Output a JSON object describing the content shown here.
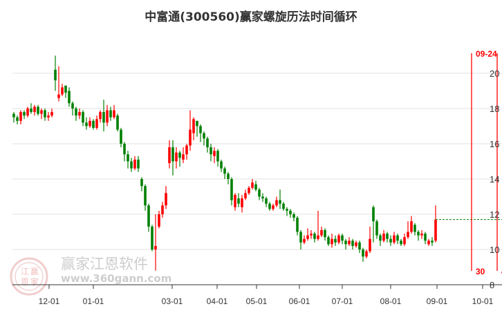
{
  "chart_data": {
    "type": "candlestick",
    "title": "中富通(300560)赢家螺旋历法时间循环",
    "ylim": [
      8,
      21
    ],
    "y_ticks": [
      "8",
      "10",
      "12",
      "14",
      "16",
      "18",
      "20"
    ],
    "x_ticks": [
      "12-01",
      "01-01",
      "03-01",
      "04-01",
      "05-01",
      "06-01",
      "07-01",
      "08-01",
      "09-01",
      "10-01"
    ],
    "grid": true,
    "colors": {
      "up": "#ff0000",
      "down": "#008000",
      "cycle_line": "#ff0000",
      "last_price_line": "#008000"
    },
    "candles": [
      [
        17.7,
        17.5,
        17.8,
        17.2
      ],
      [
        17.5,
        17.3,
        17.6,
        17.1
      ],
      [
        17.3,
        17.8,
        17.9,
        17.1
      ],
      [
        17.8,
        17.6,
        17.9,
        17.4
      ],
      [
        17.6,
        18.0,
        18.1,
        17.5
      ],
      [
        18.0,
        17.8,
        18.3,
        17.7
      ],
      [
        17.8,
        18.1,
        18.2,
        17.6
      ],
      [
        18.1,
        17.7,
        18.2,
        17.6
      ],
      [
        17.7,
        17.9,
        18.0,
        17.4
      ],
      [
        17.9,
        17.5,
        18.0,
        17.3
      ],
      [
        17.5,
        17.6,
        17.8,
        17.3
      ],
      [
        17.6,
        17.8,
        18.0,
        17.5
      ],
      [
        20.2,
        19.6,
        21.0,
        19.0
      ],
      [
        18.6,
        18.8,
        20.4,
        18.4
      ],
      [
        18.8,
        19.2,
        19.4,
        18.7
      ],
      [
        19.3,
        18.9,
        19.3,
        18.6
      ],
      [
        19.0,
        18.3,
        19.2,
        18.1
      ],
      [
        18.3,
        18.0,
        18.4,
        17.6
      ],
      [
        18.0,
        17.6,
        18.1,
        17.3
      ],
      [
        17.6,
        17.8,
        18.0,
        17.4
      ],
      [
        17.8,
        17.2,
        17.9,
        17.0
      ],
      [
        17.2,
        17.0,
        17.5,
        16.8
      ],
      [
        17.0,
        17.3,
        17.5,
        16.9
      ],
      [
        17.3,
        16.9,
        17.4,
        16.8
      ],
      [
        16.9,
        17.4,
        17.6,
        16.8
      ],
      [
        17.4,
        17.8,
        17.9,
        17.2
      ],
      [
        17.8,
        17.2,
        18.5,
        16.7
      ],
      [
        17.2,
        17.9,
        18.2,
        17.0
      ],
      [
        17.9,
        17.5,
        18.1,
        17.3
      ],
      [
        17.5,
        17.9,
        18.2,
        17.4
      ],
      [
        17.6,
        16.8,
        17.7,
        16.7
      ],
      [
        16.8,
        16.0,
        16.9,
        15.8
      ],
      [
        16.0,
        15.4,
        16.1,
        15.0
      ],
      [
        15.4,
        15.0,
        15.6,
        14.6
      ],
      [
        15.0,
        14.6,
        15.2,
        14.4
      ],
      [
        14.6,
        15.1,
        15.3,
        14.5
      ],
      [
        15.1,
        14.6,
        15.3,
        14.4
      ],
      [
        14.0,
        13.6,
        14.1,
        13.3
      ],
      [
        13.6,
        12.5,
        13.7,
        12.2
      ],
      [
        12.5,
        11.3,
        12.6,
        11.0
      ],
      [
        11.3,
        10.0,
        11.4,
        9.9
      ],
      [
        10.0,
        10.2,
        12.0,
        8.8
      ],
      [
        11.3,
        12.0,
        12.2,
        11.2
      ],
      [
        12.0,
        12.5,
        12.7,
        11.8
      ],
      [
        12.5,
        13.2,
        13.6,
        12.3
      ],
      [
        14.9,
        15.8,
        16.2,
        14.6
      ],
      [
        15.8,
        15.0,
        16.2,
        14.2
      ],
      [
        15.0,
        15.5,
        15.8,
        14.6
      ],
      [
        15.5,
        15.2,
        15.6,
        14.7
      ],
      [
        15.1,
        15.4,
        15.8,
        14.9
      ],
      [
        15.4,
        15.9,
        16.0,
        15.1
      ],
      [
        15.9,
        16.8,
        17.9,
        15.6
      ],
      [
        16.6,
        17.4,
        17.5,
        16.2
      ],
      [
        17.3,
        17.0,
        17.3,
        16.4
      ],
      [
        17.0,
        16.6,
        17.1,
        16.1
      ],
      [
        16.6,
        16.3,
        16.7,
        15.9
      ],
      [
        16.3,
        15.8,
        16.4,
        15.5
      ],
      [
        15.8,
        15.4,
        16.0,
        15.0
      ],
      [
        15.3,
        15.6,
        15.8,
        14.9
      ],
      [
        15.6,
        15.0,
        15.7,
        14.7
      ],
      [
        15.0,
        14.6,
        15.1,
        14.4
      ],
      [
        14.6,
        14.3,
        14.7,
        14.0
      ],
      [
        14.3,
        14.0,
        14.4,
        13.7
      ],
      [
        14.0,
        12.8,
        14.1,
        12.5
      ],
      [
        12.4,
        13.1,
        13.2,
        12.2
      ],
      [
        12.9,
        12.6,
        13.2,
        12.4
      ],
      [
        12.4,
        12.9,
        13.1,
        12.1
      ],
      [
        12.9,
        13.2,
        13.4,
        12.8
      ],
      [
        13.2,
        13.5,
        13.6,
        13.1
      ],
      [
        13.5,
        13.8,
        14.0,
        13.4
      ],
      [
        13.7,
        13.4,
        13.9,
        13.3
      ],
      [
        13.4,
        13.0,
        13.5,
        12.8
      ],
      [
        13.0,
        12.9,
        13.2,
        12.7
      ],
      [
        12.9,
        12.6,
        13.0,
        12.4
      ],
      [
        12.6,
        12.3,
        12.7,
        12.2
      ],
      [
        12.3,
        12.5,
        12.6,
        12.2
      ],
      [
        12.5,
        12.8,
        13.0,
        12.4
      ],
      [
        12.8,
        12.6,
        13.4,
        12.3
      ],
      [
        12.6,
        12.3,
        12.7,
        12.2
      ],
      [
        12.3,
        12.2,
        12.4,
        11.9
      ],
      [
        12.2,
        12.0,
        12.3,
        11.8
      ],
      [
        12.0,
        11.8,
        12.1,
        11.6
      ],
      [
        11.8,
        11.0,
        11.9,
        10.8
      ],
      [
        11.0,
        10.4,
        11.1,
        10.0
      ],
      [
        10.4,
        10.6,
        10.8,
        10.3
      ],
      [
        10.6,
        10.8,
        11.2,
        10.5
      ],
      [
        10.8,
        10.9,
        11.1,
        10.6
      ],
      [
        10.9,
        10.6,
        11.0,
        10.4
      ],
      [
        10.6,
        10.8,
        12.2,
        10.5
      ],
      [
        10.8,
        11.1,
        11.3,
        10.7
      ],
      [
        11.1,
        10.7,
        11.2,
        10.5
      ],
      [
        10.7,
        10.3,
        10.8,
        10.2
      ],
      [
        10.3,
        10.6,
        10.9,
        10.1
      ],
      [
        10.6,
        10.4,
        10.8,
        10.2
      ],
      [
        10.4,
        10.8,
        10.9,
        10.3
      ],
      [
        10.8,
        10.5,
        10.9,
        10.3
      ],
      [
        10.5,
        10.3,
        10.6,
        10.0
      ],
      [
        10.3,
        10.5,
        10.7,
        10.2
      ],
      [
        10.5,
        10.2,
        10.6,
        10.0
      ],
      [
        10.2,
        10.4,
        10.5,
        10.1
      ],
      [
        10.4,
        10.0,
        10.5,
        9.8
      ],
      [
        10.0,
        9.6,
        10.1,
        9.3
      ],
      [
        9.6,
        9.9,
        10.0,
        9.5
      ],
      [
        9.9,
        10.6,
        11.3,
        9.8
      ],
      [
        12.4,
        11.6,
        12.5,
        10.4
      ],
      [
        11.6,
        10.8,
        11.7,
        10.6
      ],
      [
        10.8,
        10.5,
        10.9,
        10.2
      ],
      [
        10.5,
        10.9,
        11.1,
        10.4
      ],
      [
        10.9,
        10.6,
        11.0,
        10.4
      ],
      [
        10.6,
        10.4,
        10.8,
        10.2
      ],
      [
        10.4,
        10.8,
        11.0,
        10.3
      ],
      [
        10.8,
        10.5,
        10.9,
        10.3
      ],
      [
        10.5,
        10.3,
        10.6,
        10.2
      ],
      [
        10.3,
        10.7,
        10.9,
        10.2
      ],
      [
        10.7,
        11.0,
        11.6,
        10.6
      ],
      [
        11.0,
        11.6,
        11.9,
        10.9
      ],
      [
        11.4,
        11.0,
        11.5,
        10.8
      ],
      [
        11.0,
        10.8,
        11.1,
        10.5
      ],
      [
        10.8,
        10.9,
        11.1,
        10.6
      ],
      [
        10.9,
        10.5,
        11.0,
        10.3
      ],
      [
        10.3,
        10.5,
        10.6,
        10.2
      ],
      [
        10.5,
        10.4,
        10.7,
        10.2
      ],
      [
        10.5,
        11.7,
        12.5,
        10.4
      ]
    ],
    "last_price": 11.7,
    "cycle_lines": [
      {
        "top_label": "09-24",
        "bottom_label": "30"
      },
      {
        "top_label": "",
        "bottom_label": "4"
      }
    ]
  },
  "watermark": {
    "brand": "赢家江恩软件",
    "url": "www.360gann.com",
    "seal": [
      "江",
      "赢",
      "恩",
      "家"
    ]
  }
}
